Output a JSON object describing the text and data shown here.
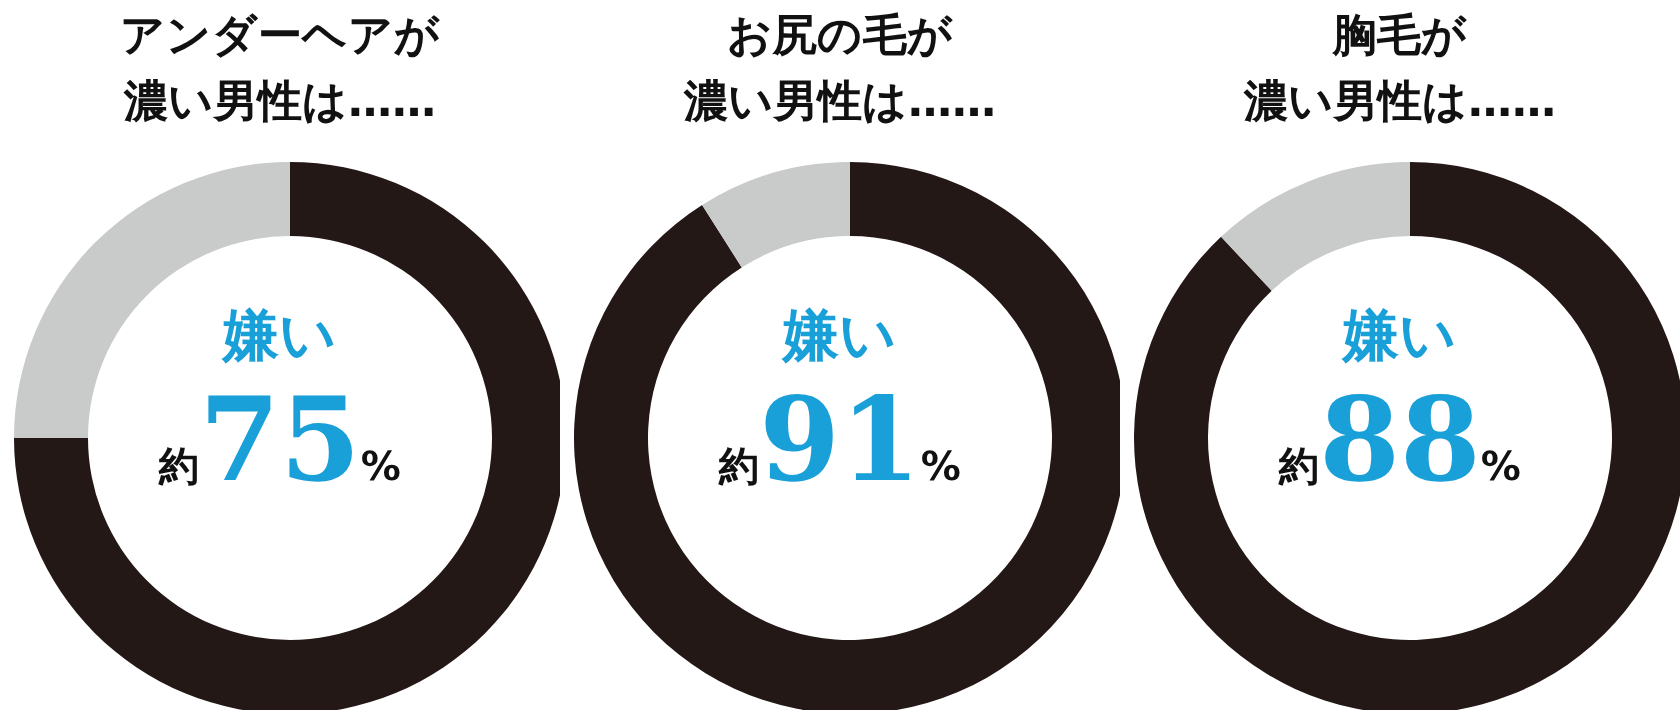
{
  "chart_data": [
    {
      "type": "donut",
      "title": "アンダーヘアが濃い男性は……",
      "categories": [
        "嫌い",
        null
      ],
      "values": [
        75,
        25
      ],
      "value_labels": [
        "約75%",
        null
      ],
      "colors": [
        "#231815",
        "#c9caca"
      ]
    },
    {
      "type": "donut",
      "title": "お尻の毛が濃い男性は……",
      "categories": [
        "嫌い",
        null
      ],
      "values": [
        91,
        9
      ],
      "value_labels": [
        "約91%",
        null
      ],
      "colors": [
        "#231815",
        "#c9caca"
      ]
    },
    {
      "type": "donut",
      "title": "胸毛が濃い男性は……",
      "categories": [
        "嫌い",
        null
      ],
      "values": [
        88,
        12
      ],
      "value_labels": [
        "約88%",
        null
      ],
      "colors": [
        "#231815",
        "#c9caca"
      ]
    }
  ]
}
